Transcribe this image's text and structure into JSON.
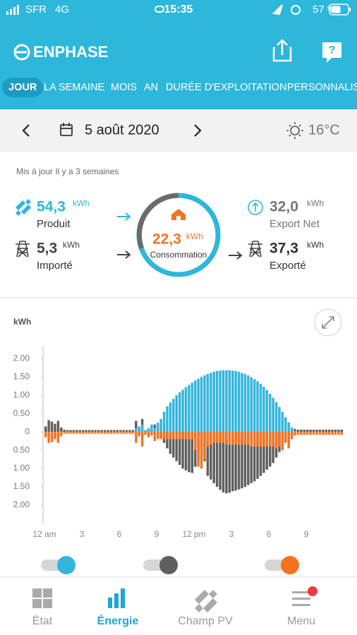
{
  "status_bar": {
    "carrier": "SFR",
    "network": "4G",
    "time": "15:35",
    "battery": "57 %"
  },
  "header": {
    "logo": "ENPHASE",
    "tabs": [
      "JOUR",
      "LA SEMAINE",
      "MOIS",
      "AN",
      "DURÉE D'EXPLOITATION",
      "PERSONNALISÉ"
    ],
    "selected_tab": 0
  },
  "date_bar": {
    "date": "5 août 2020",
    "temperature": "16°C"
  },
  "summary": {
    "updated": "Mis à jour Il y a 3 semaines",
    "produced": {
      "value": "54,3",
      "unit": "kWh",
      "label": "Produit"
    },
    "imported": {
      "value": "5,3",
      "unit": "kWh",
      "label": "Importé"
    },
    "consumption": {
      "value": "22,3",
      "unit": "kWh",
      "label": "Consommation"
    },
    "export_net": {
      "value": "32,0",
      "unit": "kWh",
      "label": "Export Net"
    },
    "exported": {
      "value": "37,3",
      "unit": "kWh",
      "label": "Exporté"
    }
  },
  "chart_data": {
    "type": "bar",
    "y_label": "kWh",
    "x": [
      0,
      0.25,
      0.5,
      0.75,
      1,
      1.25,
      1.5,
      1.75,
      2,
      2.25,
      2.5,
      2.75,
      3,
      3.25,
      3.5,
      3.75,
      4,
      4.25,
      4.5,
      4.75,
      5,
      5.25,
      5.5,
      5.75,
      6,
      6.25,
      6.5,
      6.75,
      7,
      7.25,
      7.5,
      7.75,
      8,
      8.25,
      8.5,
      8.75,
      9,
      9.25,
      9.5,
      9.75,
      10,
      10.25,
      10.5,
      10.75,
      11,
      11.25,
      11.5,
      11.75,
      12,
      12.25,
      12.5,
      12.75,
      13,
      13.25,
      13.5,
      13.75,
      14,
      14.25,
      14.5,
      14.75,
      15,
      15.25,
      15.5,
      15.75,
      16,
      16.25,
      16.5,
      16.75,
      17,
      17.25,
      17.5,
      17.75,
      18,
      18.25,
      18.5,
      18.75,
      19,
      19.25,
      19.5,
      19.75,
      20,
      20.25,
      20.5,
      20.75,
      21,
      21.25,
      21.5,
      21.75,
      22,
      22.25,
      22.5,
      22.75,
      23,
      23.25,
      23.5,
      23.75
    ],
    "series": [
      {
        "color": "#5f5f5f",
        "values": [
          0.15,
          0.32,
          0.28,
          0.22,
          0.3,
          0.12,
          0.06,
          0.05,
          0.05,
          0.05,
          0.05,
          0.05,
          0.05,
          0.05,
          0.05,
          0.05,
          0.05,
          0.05,
          0.05,
          0.05,
          0.05,
          0.05,
          0.05,
          0.05,
          0.05,
          0.05,
          0.05,
          0.05,
          0.05,
          0.3,
          0.12,
          0.35,
          0.05,
          0.1,
          0.05,
          0.2,
          -0.05,
          -0.15,
          -0.3,
          -0.45,
          -0.6,
          -0.7,
          -0.8,
          -0.9,
          -1.0,
          -1.05,
          -1.1,
          -1.12,
          -0.95,
          -0.6,
          -0.55,
          -0.8,
          -1.2,
          -1.3,
          -1.4,
          -1.5,
          -1.58,
          -1.65,
          -1.68,
          -1.66,
          -1.62,
          -1.6,
          -1.57,
          -1.54,
          -1.5,
          -1.45,
          -1.4,
          -1.35,
          -1.28,
          -1.2,
          -1.12,
          -1.03,
          -0.95,
          -0.85,
          -0.7,
          -0.55,
          -0.4,
          -0.25,
          -0.1,
          0.05,
          0.08,
          0.06,
          0.06,
          0.06,
          0.06,
          0.06,
          0.06,
          0.06,
          0.06,
          0.06,
          0.06,
          0.06,
          0.06,
          0.06,
          0.06,
          0.06
        ]
      },
      {
        "color": "#33b5dd",
        "values": [
          0,
          0,
          0,
          0,
          0,
          0,
          0,
          0,
          0,
          0,
          0,
          0,
          0,
          0,
          0,
          0,
          0,
          0,
          0,
          0,
          0,
          0,
          0,
          0,
          0,
          0,
          0,
          0,
          0,
          0.1,
          0.15,
          0.2,
          0.05,
          0.1,
          0.2,
          0.1,
          0.25,
          0.35,
          0.55,
          0.7,
          0.8,
          0.9,
          1.0,
          1.08,
          1.15,
          1.22,
          1.28,
          1.34,
          1.4,
          1.45,
          1.5,
          1.54,
          1.58,
          1.61,
          1.64,
          1.66,
          1.67,
          1.68,
          1.68,
          1.68,
          1.67,
          1.66,
          1.64,
          1.61,
          1.58,
          1.54,
          1.49,
          1.44,
          1.38,
          1.31,
          1.23,
          1.14,
          1.04,
          0.93,
          0.81,
          0.68,
          0.54,
          0.4,
          0.26,
          0.12,
          0.03,
          0,
          0,
          0,
          0,
          0,
          0,
          0,
          0,
          0,
          0,
          0,
          0,
          0,
          0,
          0
        ]
      },
      {
        "color": "#f37321",
        "values": [
          -0.15,
          -0.3,
          -0.28,
          -0.2,
          -0.3,
          -0.12,
          -0.05,
          -0.05,
          -0.05,
          -0.05,
          -0.05,
          -0.05,
          -0.05,
          -0.05,
          -0.05,
          -0.05,
          -0.05,
          -0.05,
          -0.05,
          -0.05,
          -0.05,
          -0.05,
          -0.05,
          -0.05,
          -0.05,
          -0.05,
          -0.05,
          -0.05,
          -0.05,
          -0.3,
          -0.12,
          -0.4,
          -0.08,
          -0.15,
          -0.1,
          -0.25,
          -0.2,
          -0.2,
          -0.2,
          -0.2,
          -0.2,
          -0.2,
          -0.2,
          -0.2,
          -0.2,
          -0.2,
          -0.2,
          -0.2,
          -0.5,
          -0.95,
          -1.0,
          -0.75,
          -0.4,
          -0.35,
          -0.3,
          -0.3,
          -0.3,
          -0.3,
          -0.35,
          -0.35,
          -0.35,
          -0.35,
          -0.35,
          -0.35,
          -0.35,
          -0.35,
          -0.4,
          -0.4,
          -0.4,
          -0.4,
          -0.4,
          -0.4,
          -0.4,
          -0.4,
          -0.45,
          -0.4,
          -0.5,
          -0.3,
          -0.45,
          -0.2,
          -0.1,
          -0.08,
          -0.08,
          -0.08,
          -0.08,
          -0.08,
          -0.08,
          -0.08,
          -0.08,
          -0.08,
          -0.08,
          -0.08,
          -0.08,
          -0.08,
          -0.08,
          -0.08
        ]
      }
    ],
    "xlim": [
      0,
      24
    ],
    "xticks": [
      {
        "value": 0,
        "label": "12 am"
      },
      3,
      6,
      9,
      {
        "value": 12,
        "label": "12 pm"
      },
      {
        "value": 15,
        "label": "3"
      },
      {
        "value": 18,
        "label": "6"
      },
      {
        "value": 21,
        "label": "9"
      }
    ],
    "ylim": [
      -2.5,
      2.35
    ],
    "yticks": [
      {
        "value": 2,
        "label": "2.00"
      },
      {
        "value": 1.5,
        "label": "1.50"
      },
      {
        "value": 1,
        "label": "1.00"
      },
      {
        "value": 0.5,
        "label": "0.50"
      },
      0,
      {
        "value": -0.5,
        "label": "0.50"
      },
      {
        "value": -1,
        "label": "1.00"
      },
      {
        "value": -1.5,
        "label": "1.50"
      },
      {
        "value": -2,
        "label": "2.00"
      }
    ],
    "grid": false
  },
  "nav": {
    "items": [
      "État",
      "Énergie",
      "Champ PV",
      "Menu"
    ],
    "selected": 1
  }
}
